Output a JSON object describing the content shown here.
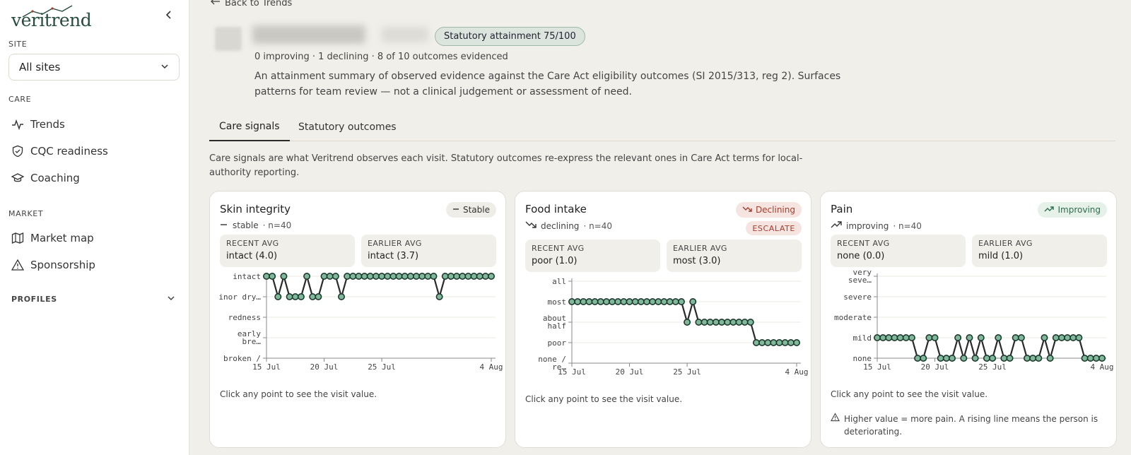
{
  "sidebar": {
    "logo": "veritrend",
    "collapse_icon": "chevron-left-icon",
    "site_label": "SITE",
    "site_value": "All sites",
    "care_label": "CARE",
    "care_items": [
      {
        "label": "Trends",
        "icon": "activity-icon"
      },
      {
        "label": "CQC readiness",
        "icon": "shield-check-icon"
      },
      {
        "label": "Coaching",
        "icon": "graduation-cap-icon"
      }
    ],
    "market_label": "MARKET",
    "market_items": [
      {
        "label": "Market map",
        "icon": "map-icon"
      },
      {
        "label": "Sponsorship",
        "icon": "warning-icon"
      }
    ],
    "profiles_label": "PROFILES"
  },
  "header": {
    "back_label": "Back to Trends",
    "attainment_badge": "Statutory attainment 75/100",
    "summary": "0 improving · 1 declining · 8 of 10 outcomes evidenced",
    "description": "An attainment summary of observed evidence against the Care Act eligibility outcomes (SI 2015/313, reg 2). Surfaces patterns for team review — not a clinical judgement or assessment of need."
  },
  "tabs": [
    {
      "label": "Care signals",
      "active": true
    },
    {
      "label": "Statutory outcomes",
      "active": false
    }
  ],
  "care_description": "Care signals are what Veritrend observes each visit. Statutory outcomes re-express the relevant ones in Care Act terms for local-authority reporting.",
  "cards": [
    {
      "title": "Skin integrity",
      "badge": "Stable",
      "trend_word": "stable",
      "n_label": "· n=40",
      "recent_label": "RECENT AVG",
      "recent_value": "intact (4.0)",
      "earlier_label": "EARLIER AVG",
      "earlier_value": "intact (3.7)",
      "hint": "Click any point to see the visit value."
    },
    {
      "title": "Food intake",
      "badge": "Declining",
      "escalate": "ESCALATE",
      "trend_word": "declining",
      "n_label": "· n=40",
      "recent_label": "RECENT AVG",
      "recent_value": "poor (1.0)",
      "earlier_label": "EARLIER AVG",
      "earlier_value": "most (3.0)",
      "hint": "Click any point to see the visit value."
    },
    {
      "title": "Pain",
      "badge": "Improving",
      "trend_word": "improving",
      "n_label": "· n=40",
      "recent_label": "RECENT AVG",
      "recent_value": "none (0.0)",
      "earlier_label": "EARLIER AVG",
      "earlier_value": "mild (1.0)",
      "hint": "Click any point to see the visit value.",
      "warning": "Higher value = more pain. A rising line means the person is deteriorating."
    }
  ],
  "chart_data": [
    {
      "type": "line",
      "title": "Skin integrity",
      "y_tick_labels": [
        [
          "broken /"
        ],
        [
          "early",
          "bre…"
        ],
        [
          "redness"
        ],
        [
          "inor dry…"
        ],
        [
          "intact"
        ]
      ],
      "ylim": [
        0,
        4
      ],
      "x_tick_labels": [
        "15 Jul",
        "20 Jul",
        "25 Jul",
        "4 Aug"
      ],
      "x_tick_index": [
        0,
        10,
        20,
        39
      ],
      "color": "#2f5a46",
      "values": [
        4,
        4,
        3,
        4,
        3,
        3,
        3,
        4,
        3,
        3,
        4,
        4,
        4,
        3,
        4,
        4,
        4,
        4,
        4,
        4,
        4,
        4,
        4,
        4,
        4,
        4,
        4,
        4,
        4,
        4,
        3,
        4,
        4,
        4,
        4,
        4,
        4,
        4,
        4,
        4
      ]
    },
    {
      "type": "line",
      "title": "Food intake",
      "y_tick_labels": [
        [
          "none /",
          "re…"
        ],
        [
          "poor"
        ],
        [
          "about",
          "half"
        ],
        [
          "most"
        ],
        [
          "all"
        ]
      ],
      "ylim": [
        0,
        4
      ],
      "x_tick_labels": [
        "15 Jul",
        "20 Jul",
        "25 Jul",
        "4 Aug"
      ],
      "x_tick_index": [
        0,
        10,
        20,
        39
      ],
      "color": "#2f5a46",
      "values": [
        3,
        3,
        3,
        3,
        3,
        3,
        3,
        3,
        3,
        3,
        3,
        3,
        3,
        3,
        3,
        3,
        3,
        3,
        3,
        3,
        2,
        3,
        2,
        2,
        2,
        2,
        2,
        2,
        2,
        2,
        2,
        2,
        1,
        1,
        1,
        1,
        1,
        1,
        1,
        1
      ]
    },
    {
      "type": "line",
      "title": "Pain",
      "y_tick_labels": [
        [
          "none"
        ],
        [
          "mild"
        ],
        [
          "moderate"
        ],
        [
          "severe"
        ],
        [
          "very",
          "seve…"
        ]
      ],
      "ylim": [
        0,
        4
      ],
      "x_tick_labels": [
        "15 Jul",
        "20 Jul",
        "25 Jul",
        "4 Aug"
      ],
      "x_tick_index": [
        0,
        10,
        20,
        39
      ],
      "color": "#2f5a46",
      "values": [
        1,
        1,
        1,
        1,
        1,
        1,
        1,
        0,
        0,
        1,
        1,
        0,
        0,
        0,
        1,
        0,
        1,
        0,
        1,
        0,
        0,
        1,
        0,
        0,
        1,
        1,
        0,
        0,
        0,
        1,
        0,
        1,
        1,
        1,
        1,
        1,
        0,
        0,
        0,
        0
      ]
    }
  ]
}
